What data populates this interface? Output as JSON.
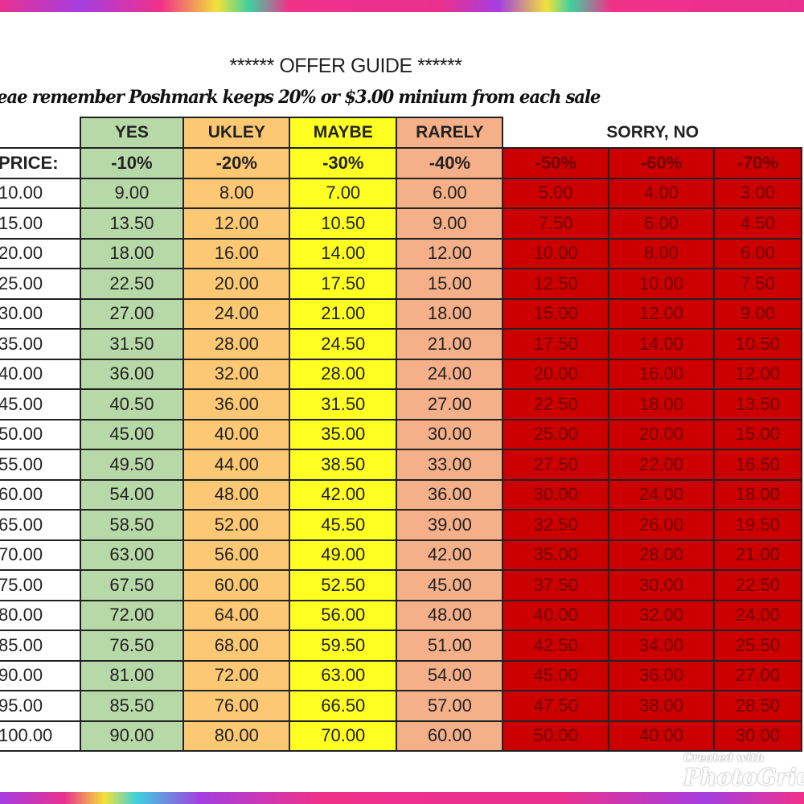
{
  "title": "****** OFFER GUIDE ******",
  "subtitle": "eae remember Poshmark keeps 20% or $3.00 minium from each sale",
  "watermark": {
    "top": "Created with",
    "main": "PhotoGrid"
  },
  "colors": {
    "yes": "#b7d9a8",
    "likely": "#fcc873",
    "maybe": "#ffff22",
    "rarely": "#f5b08a",
    "sorry_no": "#cc0000",
    "banner_pink": "#e8318f",
    "banner_purple": "#a53ee0"
  },
  "table": {
    "categories": [
      "YES",
      "UKLEY",
      "MAYBE",
      "RARELY",
      "SORRY, NO"
    ],
    "price_label": "PRICE:",
    "discounts": [
      "-10%",
      "-20%",
      "-30%",
      "-40%",
      "-50%",
      "-60%",
      "-70%"
    ],
    "rows": [
      [
        "10.00",
        "9.00",
        "8.00",
        "7.00",
        "6.00",
        "5.00",
        "4.00",
        "3.00"
      ],
      [
        "15.00",
        "13.50",
        "12.00",
        "10.50",
        "9.00",
        "7.50",
        "6.00",
        "4.50"
      ],
      [
        "20.00",
        "18.00",
        "16.00",
        "14.00",
        "12.00",
        "10.00",
        "8.00",
        "6.00"
      ],
      [
        "25.00",
        "22.50",
        "20.00",
        "17.50",
        "15.00",
        "12.50",
        "10.00",
        "7.50"
      ],
      [
        "30.00",
        "27.00",
        "24.00",
        "21.00",
        "18.00",
        "15.00",
        "12.00",
        "9.00"
      ],
      [
        "35.00",
        "31.50",
        "28.00",
        "24.50",
        "21.00",
        "17.50",
        "14.00",
        "10.50"
      ],
      [
        "40.00",
        "36.00",
        "32.00",
        "28.00",
        "24.00",
        "20.00",
        "16.00",
        "12.00"
      ],
      [
        "45.00",
        "40.50",
        "36.00",
        "31.50",
        "27.00",
        "22.50",
        "18.00",
        "13.50"
      ],
      [
        "50.00",
        "45.00",
        "40.00",
        "35.00",
        "30.00",
        "25.00",
        "20.00",
        "15.00"
      ],
      [
        "55.00",
        "49.50",
        "44.00",
        "38.50",
        "33.00",
        "27.50",
        "22.00",
        "16.50"
      ],
      [
        "60.00",
        "54.00",
        "48.00",
        "42.00",
        "36.00",
        "30.00",
        "24.00",
        "18.00"
      ],
      [
        "65.00",
        "58.50",
        "52.00",
        "45.50",
        "39.00",
        "32.50",
        "26.00",
        "19.50"
      ],
      [
        "70.00",
        "63.00",
        "56.00",
        "49.00",
        "42.00",
        "35.00",
        "28.00",
        "21.00"
      ],
      [
        "75.00",
        "67.50",
        "60.00",
        "52.50",
        "45.00",
        "37.50",
        "30.00",
        "22.50"
      ],
      [
        "80.00",
        "72.00",
        "64.00",
        "56.00",
        "48.00",
        "40.00",
        "32.00",
        "24.00"
      ],
      [
        "85.00",
        "76.50",
        "68.00",
        "59.50",
        "51.00",
        "42.50",
        "34.00",
        "25.50"
      ],
      [
        "90.00",
        "81.00",
        "72.00",
        "63.00",
        "54.00",
        "45.00",
        "36.00",
        "27.00"
      ],
      [
        "95.00",
        "85.50",
        "76.00",
        "66.50",
        "57.00",
        "47.50",
        "38.00",
        "28.50"
      ],
      [
        "100.00",
        "90.00",
        "80.00",
        "70.00",
        "60.00",
        "50.00",
        "40.00",
        "30.00"
      ]
    ]
  }
}
